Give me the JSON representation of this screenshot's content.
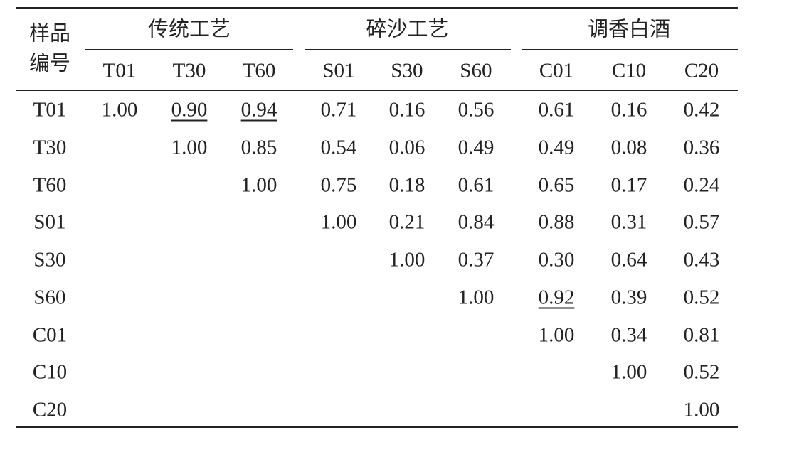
{
  "table": {
    "corner": [
      "样品",
      "编号"
    ],
    "groups": [
      {
        "title": "传统工艺",
        "columns": [
          "T01",
          "T30",
          "T60"
        ]
      },
      {
        "title": "碎沙工艺",
        "columns": [
          "S01",
          "S30",
          "S60"
        ]
      },
      {
        "title": "调香白酒",
        "columns": [
          "C01",
          "C10",
          "C20"
        ]
      }
    ],
    "rows": [
      {
        "label": "T01",
        "cells": [
          "1.00",
          "0.90",
          "0.94",
          "0.71",
          "0.16",
          "0.56",
          "0.61",
          "0.16",
          "0.42"
        ]
      },
      {
        "label": "T30",
        "cells": [
          "1.00",
          "0.85",
          "0.54",
          "0.06",
          "0.49",
          "0.49",
          "0.08",
          "0.36"
        ]
      },
      {
        "label": "T60",
        "cells": [
          "1.00",
          "0.75",
          "0.18",
          "0.61",
          "0.65",
          "0.17",
          "0.24"
        ]
      },
      {
        "label": "S01",
        "cells": [
          "1.00",
          "0.21",
          "0.84",
          "0.88",
          "0.31",
          "0.57"
        ]
      },
      {
        "label": "S30",
        "cells": [
          "1.00",
          "0.37",
          "0.30",
          "0.64",
          "0.43"
        ]
      },
      {
        "label": "S60",
        "cells": [
          "1.00",
          "0.92",
          "0.39",
          "0.52"
        ]
      },
      {
        "label": "C01",
        "cells": [
          "1.00",
          "0.34",
          "0.81"
        ]
      },
      {
        "label": "C10",
        "cells": [
          "1.00",
          "0.52"
        ]
      },
      {
        "label": "C20",
        "cells": [
          "1.00"
        ]
      }
    ]
  }
}
